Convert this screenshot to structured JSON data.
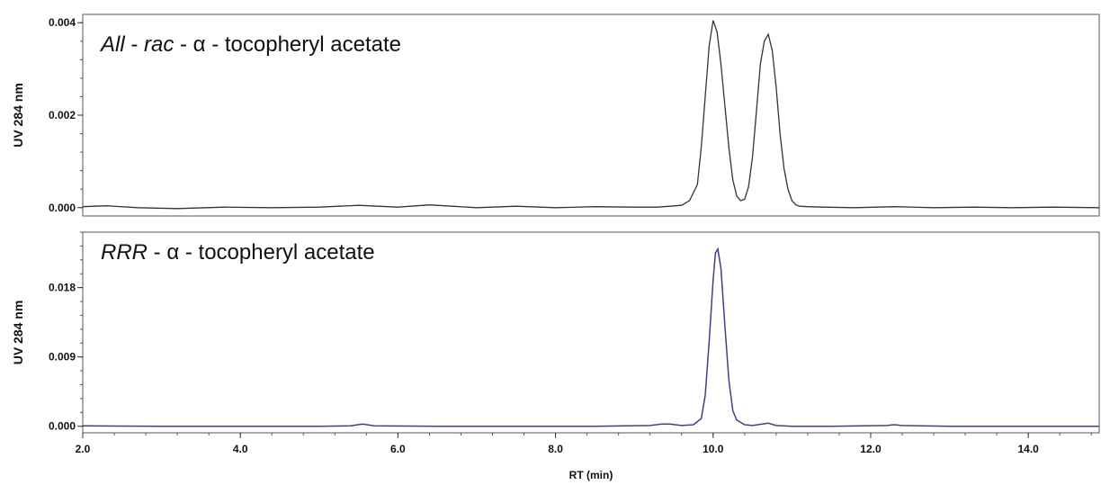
{
  "chart_data": [
    {
      "type": "line",
      "title_parts": [
        {
          "text": "All",
          "italic": true
        },
        {
          "text": " - ",
          "italic": false
        },
        {
          "text": "rac",
          "italic": true
        },
        {
          "text": " - α - tocopheryl acetate",
          "italic": false
        }
      ],
      "ylabel": "UV 284 nm",
      "xlim": [
        2.0,
        14.9
      ],
      "ylim": [
        -0.00018,
        0.00418
      ],
      "yticks": [
        "0.000",
        "0.002",
        "0.004"
      ],
      "ytick_values": [
        0.0,
        0.002,
        0.004
      ],
      "line_color": "#333333",
      "series": [
        {
          "x": [
            2.0,
            2.3,
            2.7,
            3.2,
            3.8,
            4.4,
            5.0,
            5.5,
            6.0,
            6.4,
            7.0,
            7.5,
            8.0,
            8.5,
            9.0,
            9.3,
            9.6,
            9.7,
            9.8,
            9.85,
            9.9,
            9.95,
            10.0,
            10.05,
            10.1,
            10.15,
            10.2,
            10.25,
            10.3,
            10.35,
            10.4,
            10.45,
            10.5,
            10.55,
            10.6,
            10.65,
            10.7,
            10.75,
            10.8,
            10.85,
            10.9,
            10.95,
            11.0,
            11.05,
            11.1,
            11.2,
            11.4,
            11.8,
            12.3,
            12.8,
            13.3,
            13.8,
            14.3,
            14.9
          ],
          "y": [
            2e-05,
            4e-05,
            0.0,
            -2e-05,
            1e-05,
            0.0,
            1e-05,
            5e-05,
            1e-05,
            6e-05,
            0.0,
            3e-05,
            0.0,
            2e-05,
            1e-05,
            1e-05,
            5e-05,
            0.00015,
            0.0005,
            0.0013,
            0.0024,
            0.0035,
            0.00405,
            0.0038,
            0.0031,
            0.0022,
            0.0013,
            0.0006,
            0.00025,
            0.00015,
            0.00018,
            0.00045,
            0.0011,
            0.0021,
            0.0031,
            0.0036,
            0.00375,
            0.0034,
            0.0026,
            0.0016,
            0.00085,
            0.0004,
            0.00015,
            6e-05,
            3e-05,
            2e-05,
            1e-05,
            0.0,
            2e-05,
            0.0,
            1e-05,
            0.0,
            1e-05,
            0.0
          ]
        }
      ]
    },
    {
      "type": "line",
      "title_parts": [
        {
          "text": "RRR",
          "italic": true
        },
        {
          "text": " - α - tocopheryl acetate",
          "italic": false
        }
      ],
      "ylabel": "UV 284 nm",
      "xlabel": "RT (min)",
      "xlim": [
        2.0,
        14.9
      ],
      "xticks": [
        "2.0",
        "4.0",
        "6.0",
        "8.0",
        "10.0",
        "12.0",
        "14.0"
      ],
      "xtick_values": [
        2.0,
        4.0,
        6.0,
        8.0,
        10.0,
        12.0,
        14.0
      ],
      "ylim": [
        -0.00085,
        0.0252
      ],
      "yticks": [
        "0.000",
        "0.009",
        "0.018"
      ],
      "ytick_values": [
        0.0,
        0.009,
        0.018
      ],
      "line_color": "#4a3a86",
      "series": [
        {
          "x": [
            2.0,
            3.0,
            4.0,
            5.0,
            5.4,
            5.55,
            5.7,
            6.5,
            7.5,
            8.5,
            9.2,
            9.35,
            9.45,
            9.6,
            9.75,
            9.85,
            9.9,
            9.95,
            10.0,
            10.03,
            10.06,
            10.1,
            10.15,
            10.2,
            10.25,
            10.3,
            10.4,
            10.5,
            10.7,
            10.8,
            11.0,
            11.5,
            12.2,
            12.3,
            12.4,
            13.0,
            14.0,
            14.9
          ],
          "y": [
            5e-05,
            0.0,
            0.0,
            0.0,
            5e-05,
            0.0003,
            5e-05,
            0.0,
            0.0,
            0.0,
            0.0001,
            0.0003,
            0.0003,
            0.0001,
            0.0002,
            0.001,
            0.004,
            0.011,
            0.019,
            0.0225,
            0.023,
            0.0205,
            0.013,
            0.006,
            0.002,
            0.0008,
            0.0002,
            0.0001,
            0.0004,
            0.0001,
            0.0,
            0.0,
            0.0001,
            0.0002,
            0.0001,
            0.0,
            0.0,
            0.0
          ]
        }
      ]
    }
  ]
}
